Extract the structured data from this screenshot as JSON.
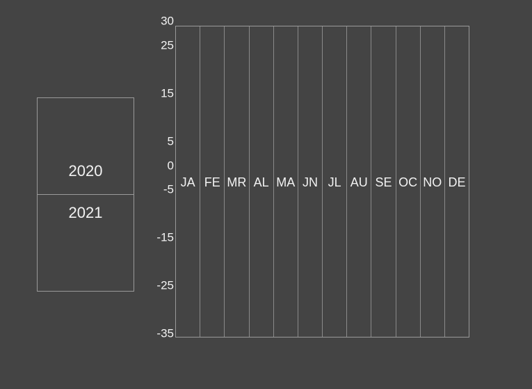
{
  "years": [
    "2020",
    "2021"
  ],
  "y_axis": {
    "ticks": [
      "30",
      "25",
      "15",
      "5",
      "0",
      "-5",
      "-15",
      "-25",
      "-35"
    ]
  },
  "months": [
    "JA",
    "FE",
    "MR",
    "AL",
    "MA",
    "JN",
    "JL",
    "AU",
    "SE",
    "OC",
    "NO",
    "DE"
  ],
  "colors": {
    "background": "#444444",
    "grid_line": "#9a9a9a",
    "text": "#f2f2f2"
  }
}
